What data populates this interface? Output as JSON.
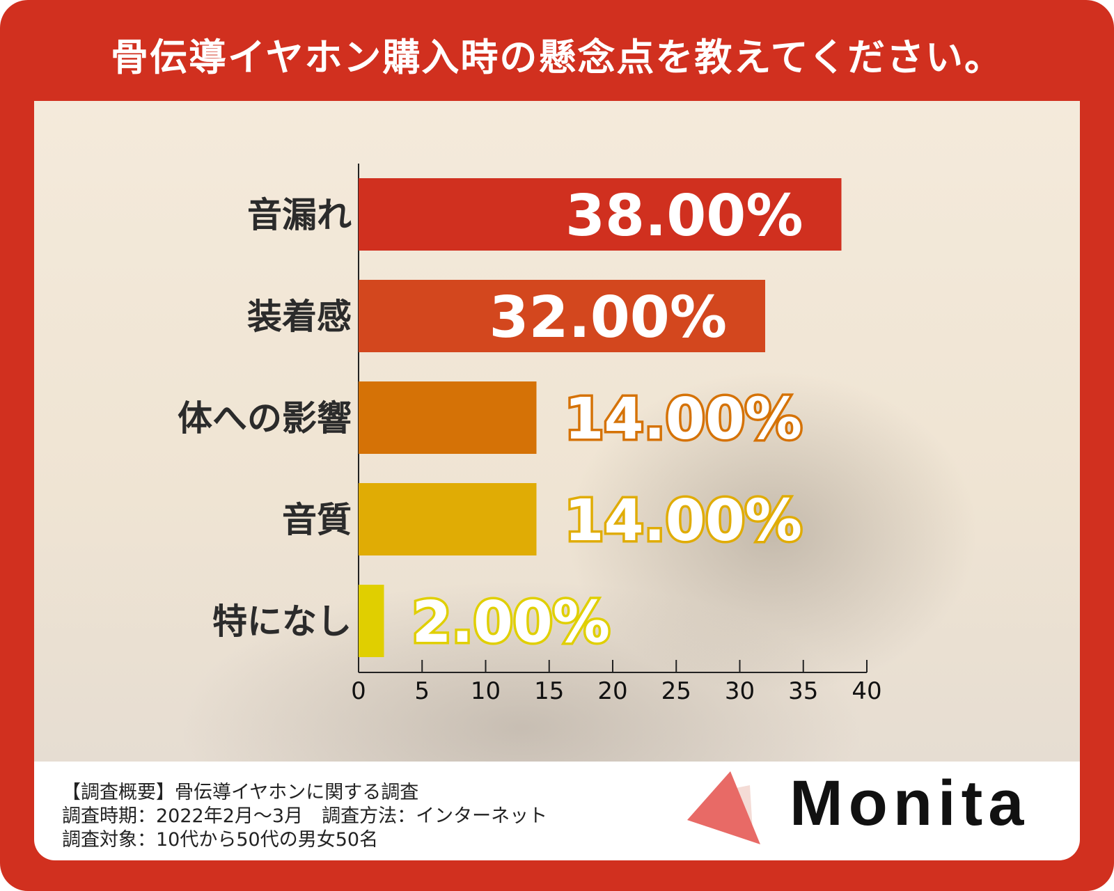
{
  "title": "骨伝導イヤホン購入時の懸念点を教えてください。",
  "chart_data": {
    "type": "bar",
    "orientation": "horizontal",
    "title": "骨伝導イヤホン購入時の懸念点を教えてください。",
    "categories": [
      "音漏れ",
      "装着感",
      "体への影響",
      "音質",
      "特になし"
    ],
    "values": [
      38,
      32,
      14,
      14,
      2
    ],
    "value_labels": [
      "38.00%",
      "32.00%",
      "14.00%",
      "14.00%",
      "2.00%"
    ],
    "colors": [
      "#d0301f",
      "#d3471e",
      "#d57206",
      "#e0ac05",
      "#e0cf00"
    ],
    "xlim": [
      0,
      40
    ],
    "xticks": [
      "0",
      "5",
      "10",
      "15",
      "20",
      "25",
      "30",
      "35",
      "40"
    ],
    "xlabel": "",
    "ylabel": "",
    "grid": false
  },
  "footer": {
    "lines": [
      "【調査概要】骨伝導イヤホンに関する調査",
      "調査時期：2022年2月〜3月　調査方法：インターネット",
      "調査対象：10代から50代の男女50名"
    ],
    "logo": "Monita"
  }
}
